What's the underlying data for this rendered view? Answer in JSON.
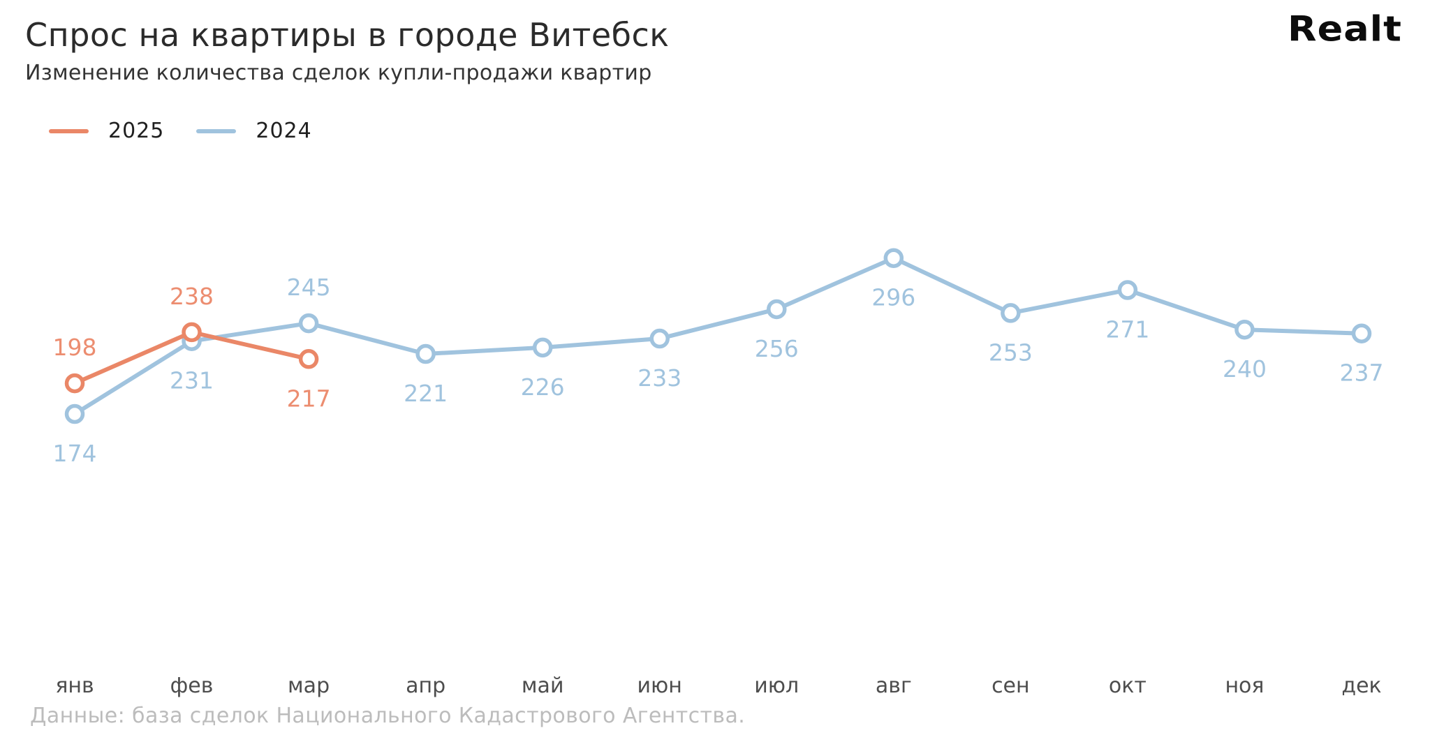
{
  "header": {
    "title": "Спрос на квартиры в городе Витебск",
    "subtitle": "Изменение количества сделок купли-продажи квартир"
  },
  "logo": {
    "text": "Realt"
  },
  "legend": [
    {
      "label": "2025",
      "color": "#EA8767"
    },
    {
      "label": "2024",
      "color": "#A0C3DE"
    }
  ],
  "chart_data": {
    "type": "line",
    "title": "Спрос на квартиры в городе Витебск",
    "subtitle": "Изменение количества сделок купли-продажи квартир",
    "xlabel": "",
    "ylabel": "",
    "grid": false,
    "legend_position": "top-left",
    "categories": [
      "янв",
      "фев",
      "мар",
      "апр",
      "май",
      "июн",
      "июл",
      "авг",
      "сен",
      "окт",
      "ноя",
      "дек"
    ],
    "y_range_shown": [
      174,
      296
    ],
    "series": [
      {
        "name": "2024",
        "color": "#A0C3DE",
        "label_color": "#A0C3DE",
        "values": [
          174,
          231,
          245,
          221,
          226,
          233,
          256,
          296,
          253,
          271,
          240,
          237
        ],
        "label_positions": [
          "below",
          "below",
          "above",
          "below",
          "below",
          "below",
          "below",
          "below",
          "below",
          "below",
          "below",
          "below"
        ]
      },
      {
        "name": "2025",
        "color": "#EA8767",
        "label_color": "#EC8D70",
        "values": [
          198,
          238,
          217
        ],
        "label_positions": [
          "above",
          "above",
          "below"
        ]
      }
    ]
  },
  "footer": {
    "source": "Данные: база сделок Национального Кадастрового Агентства."
  },
  "colors": {
    "accent_2025": "#EA8767",
    "accent_2024": "#A0C3DE",
    "title": "#2b2b2b",
    "axis_labels": "#4d4d4d",
    "footer": "#bcbcbc",
    "background": "#ffffff"
  }
}
